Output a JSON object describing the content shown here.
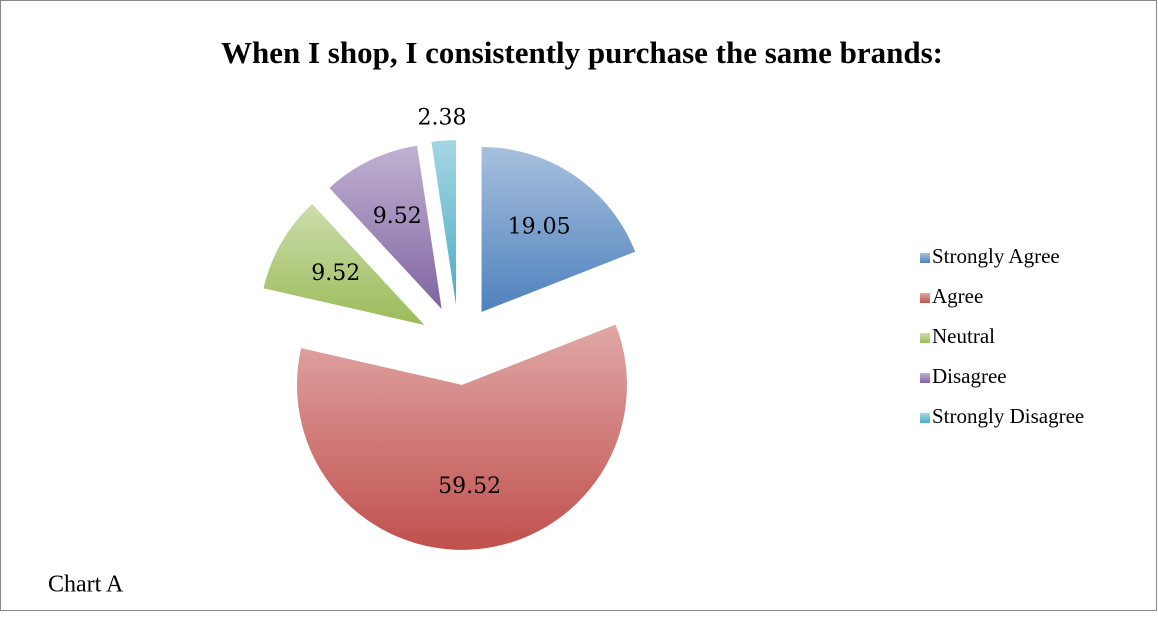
{
  "chart_data": {
    "type": "pie",
    "title": "When I shop, I consistently purchase the same brands:",
    "annotation": "Chart A",
    "categories": [
      "Strongly Agree",
      "Agree",
      "Neutral",
      "Disagree",
      "Strongly Disagree"
    ],
    "values": [
      19.05,
      59.52,
      9.52,
      9.52,
      2.38
    ],
    "colors": [
      "#4f81bd",
      "#c0504d",
      "#9bbb59",
      "#8064a2",
      "#4bacc6"
    ],
    "legend": "right"
  }
}
